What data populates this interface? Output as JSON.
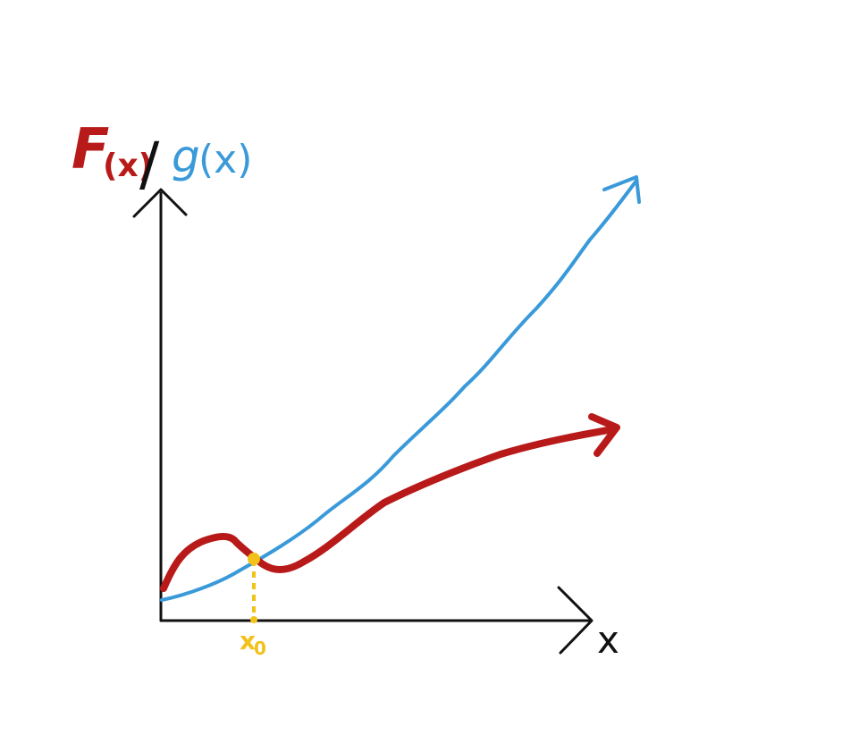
{
  "labels": {
    "f_name": "F",
    "f_arg": "(x)",
    "separator": "/",
    "g_name": "g",
    "g_arg": "(x)",
    "x_axis": "x",
    "intersection": "x",
    "intersection_subscript": "0"
  },
  "colors": {
    "f_curve": "#b81a1a",
    "g_curve": "#3a9ad9",
    "axes": "#111111",
    "intersection_marker": "#f2c21b"
  }
}
